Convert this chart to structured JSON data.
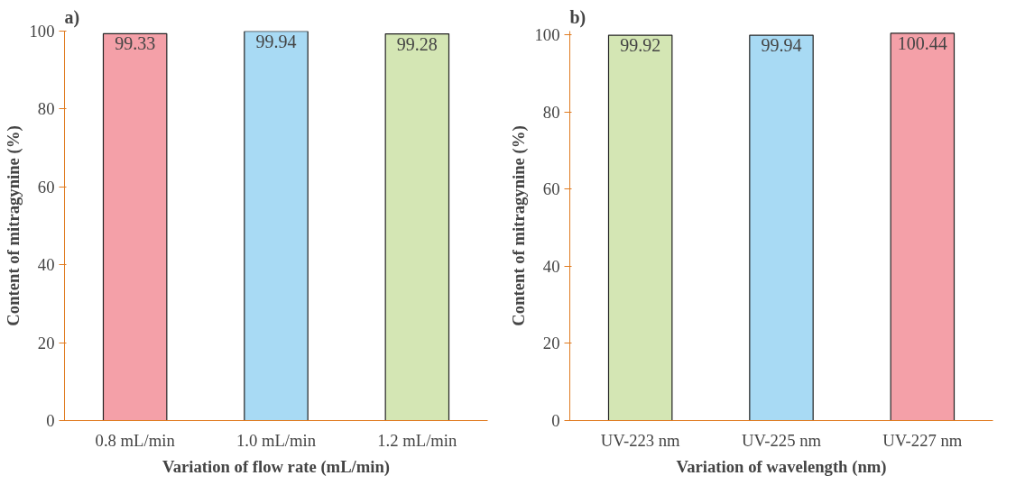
{
  "chart_data": [
    {
      "type": "bar",
      "title": "a)",
      "xlabel": "Variation of flow rate (mL/min)",
      "ylabel": "Content of mitragynine (%)",
      "categories": [
        "0.8 mL/min",
        "1.0 mL/min",
        "1.2 mL/min"
      ],
      "values": [
        99.33,
        99.94,
        99.28
      ],
      "colors": [
        "#f4a0a8",
        "#a8daf4",
        "#d4e6b4"
      ],
      "ylim": [
        0,
        100
      ],
      "yticks": [
        0,
        20,
        40,
        60,
        80,
        100
      ],
      "grid": false,
      "data_labels": true
    },
    {
      "type": "bar",
      "title": "b)",
      "xlabel": "Variation of wavelength (nm)",
      "ylabel": "Content of mitragynine (%)",
      "categories": [
        "UV-223 nm",
        "UV-225 nm",
        "UV-227 nm"
      ],
      "values": [
        99.92,
        99.94,
        100.44
      ],
      "colors": [
        "#d4e6b4",
        "#a8daf4",
        "#f4a0a8"
      ],
      "ylim": [
        0,
        101
      ],
      "yticks": [
        0,
        20,
        40,
        60,
        80,
        100
      ],
      "grid": false,
      "data_labels": true
    }
  ]
}
